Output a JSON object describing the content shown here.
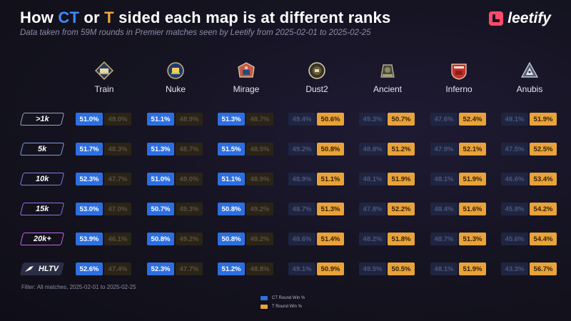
{
  "header": {
    "title_parts": [
      "How ",
      "CT",
      " or ",
      "T",
      " sided each map is at different ranks"
    ],
    "subtitle": "Data taken from 59M rounds in Premier matches seen by Leetify from 2025-02-01 to 2025-02-25",
    "logo_text": "leetify"
  },
  "colors": {
    "ct": "#2d6fe0",
    "t": "#e8a33a",
    "ct_title": "#3d8bff",
    "t_title": "#f0a93a"
  },
  "chart_data": {
    "type": "table",
    "title": "How CT or T sided each map is at different ranks",
    "columns": [
      "Train",
      "Nuke",
      "Mirage",
      "Dust2",
      "Ancient",
      "Inferno",
      "Anubis"
    ],
    "map_icons": [
      "train-icon",
      "nuke-icon",
      "mirage-icon",
      "dust2-icon",
      "ancient-icon",
      "inferno-icon",
      "anubis-icon"
    ],
    "rows": [
      {
        "rank": ">1k",
        "ct": [
          "51.0%",
          "51.1%",
          "51.3%",
          "49.4%",
          "49.3%",
          "47.6%",
          "48.1%"
        ],
        "t": [
          "49.0%",
          "48.9%",
          "48.7%",
          "50.6%",
          "50.7%",
          "52.4%",
          "51.9%"
        ]
      },
      {
        "rank": "5k",
        "ct": [
          "51.7%",
          "51.3%",
          "51.5%",
          "49.2%",
          "48.8%",
          "47.9%",
          "47.5%"
        ],
        "t": [
          "48.3%",
          "48.7%",
          "48.5%",
          "50.8%",
          "51.2%",
          "52.1%",
          "52.5%"
        ]
      },
      {
        "rank": "10k",
        "ct": [
          "52.3%",
          "51.0%",
          "51.1%",
          "48.9%",
          "48.1%",
          "48.1%",
          "46.6%"
        ],
        "t": [
          "47.7%",
          "49.0%",
          "48.9%",
          "51.1%",
          "51.9%",
          "51.9%",
          "53.4%"
        ]
      },
      {
        "rank": "15k",
        "ct": [
          "53.0%",
          "50.7%",
          "50.8%",
          "48.7%",
          "47.8%",
          "48.4%",
          "45.8%"
        ],
        "t": [
          "47.0%",
          "49.3%",
          "49.2%",
          "51.3%",
          "52.2%",
          "51.6%",
          "54.2%"
        ]
      },
      {
        "rank": "20k+",
        "ct": [
          "53.9%",
          "50.8%",
          "50.8%",
          "48.6%",
          "48.2%",
          "48.7%",
          "45.6%"
        ],
        "t": [
          "46.1%",
          "49.2%",
          "49.2%",
          "51.4%",
          "51.8%",
          "51.3%",
          "54.4%"
        ]
      },
      {
        "rank": "HLTV",
        "ct": [
          "52.6%",
          "52.3%",
          "51.2%",
          "49.1%",
          "49.5%",
          "48.1%",
          "43.3%"
        ],
        "t": [
          "47.4%",
          "47.7%",
          "48.8%",
          "50.9%",
          "50.5%",
          "51.9%",
          "56.7%"
        ]
      }
    ],
    "legend": [
      {
        "label": "CT Round Win %",
        "color": "#2d6fe0"
      },
      {
        "label": "T Round Win %",
        "color": "#e8a33a"
      }
    ]
  },
  "footer": {
    "filter": "Filter: All matches, 2025-02-01 to 2025-02-25"
  }
}
